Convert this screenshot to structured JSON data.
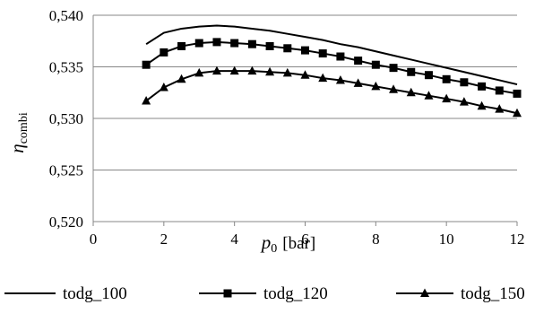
{
  "chart_data": {
    "type": "line",
    "x": [
      1.5,
      2,
      2.5,
      3,
      3.5,
      4,
      4.5,
      5,
      5.5,
      6,
      6.5,
      7,
      7.5,
      8,
      8.5,
      9,
      9.5,
      10,
      10.5,
      11,
      11.5,
      12
    ],
    "series": [
      {
        "name": "todg_100",
        "marker": "none",
        "x": [
          1.5,
          2,
          2.5,
          3,
          3.5,
          4,
          4.5,
          5,
          5.5,
          6,
          6.5,
          7,
          7.5,
          8,
          8.5,
          9,
          9.5,
          10,
          10.5,
          11,
          11.5,
          12
        ],
        "values": [
          0.5372,
          0.5383,
          0.5387,
          0.5389,
          0.539,
          0.5389,
          0.5387,
          0.5385,
          0.5382,
          0.5379,
          0.5376,
          0.5372,
          0.5369,
          0.5365,
          0.5361,
          0.5357,
          0.5353,
          0.5349,
          0.5345,
          0.5341,
          0.5337,
          0.5333
        ]
      },
      {
        "name": "todg_120",
        "marker": "square",
        "x": [
          1.5,
          2,
          2.5,
          3,
          3.5,
          4,
          4.5,
          5,
          5.5,
          6,
          6.5,
          7,
          7.5,
          8,
          8.5,
          9,
          9.5,
          10,
          10.5,
          11,
          11.5,
          12
        ],
        "values": [
          0.5352,
          0.5364,
          0.537,
          0.5373,
          0.5374,
          0.5373,
          0.5372,
          0.537,
          0.5368,
          0.5366,
          0.5363,
          0.536,
          0.5356,
          0.5352,
          0.5349,
          0.5345,
          0.5342,
          0.5338,
          0.5335,
          0.5331,
          0.5327,
          0.5324
        ]
      },
      {
        "name": "todg_150",
        "marker": "triangle",
        "x": [
          1.5,
          2,
          2.5,
          3,
          3.5,
          4,
          4.5,
          5,
          5.5,
          6,
          6.5,
          7,
          7.5,
          8,
          8.5,
          9,
          9.5,
          10,
          10.5,
          11,
          11.5,
          12
        ],
        "values": [
          0.5317,
          0.533,
          0.5338,
          0.5344,
          0.5346,
          0.5346,
          0.5346,
          0.5345,
          0.5344,
          0.5342,
          0.5339,
          0.5337,
          0.5334,
          0.5331,
          0.5328,
          0.5325,
          0.5322,
          0.5319,
          0.5316,
          0.5312,
          0.5309,
          0.5305
        ]
      }
    ],
    "xlabel_main": "p",
    "xlabel_sub": "0",
    "xlabel_unit": "[bar]",
    "ylabel_main": "η",
    "ylabel_sub": "combi",
    "xlim": [
      0,
      12
    ],
    "ylim": [
      0.52,
      0.54
    ],
    "xticks": [
      0,
      2,
      4,
      6,
      8,
      10,
      12
    ],
    "yticks": [
      0.52,
      0.525,
      0.53,
      0.535,
      0.54
    ],
    "ytick_labels": [
      "0,520",
      "0,525",
      "0,530",
      "0,535",
      "0,540"
    ],
    "xtick_labels": [
      "0",
      "2",
      "4",
      "6",
      "8",
      "10",
      "12"
    ],
    "grid": "horizontal",
    "legend_position": "bottom",
    "colors": {
      "line": "#000000",
      "grid": "#878787",
      "axis": "#878787"
    }
  }
}
